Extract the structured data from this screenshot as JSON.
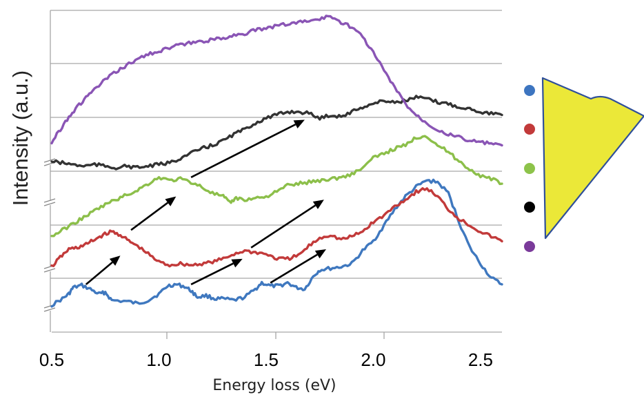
{
  "chart_data": {
    "type": "line",
    "title": "",
    "xlabel": "Energy loss (eV)",
    "ylabel": "Intensity (a.u.)",
    "xlim": [
      0.5,
      2.6
    ],
    "x_ticks": [
      "0.5",
      "1.0",
      "1.5",
      "2.0",
      "2.5"
    ],
    "x_tick_values": [
      0.5,
      1.0,
      1.5,
      2.0,
      2.5
    ],
    "y_ticks_shown": false,
    "grid": "horizontal",
    "y_axis_breaks": true,
    "series": [
      {
        "color": "#3f78bf",
        "points": [
          [
            0.5,
            0.0
          ],
          [
            0.55,
            0.2
          ],
          [
            0.58,
            0.35
          ],
          [
            0.6,
            0.55
          ],
          [
            0.64,
            0.62
          ],
          [
            0.68,
            0.5
          ],
          [
            0.72,
            0.35
          ],
          [
            0.75,
            0.4
          ],
          [
            0.78,
            0.15
          ],
          [
            0.85,
            0.12
          ],
          [
            0.9,
            0.05
          ],
          [
            0.95,
            0.15
          ],
          [
            1.0,
            0.35
          ],
          [
            1.04,
            0.6
          ],
          [
            1.08,
            0.65
          ],
          [
            1.12,
            0.58
          ],
          [
            1.15,
            0.45
          ],
          [
            1.18,
            0.25
          ],
          [
            1.22,
            0.3
          ],
          [
            1.26,
            0.2
          ],
          [
            1.3,
            0.2
          ],
          [
            1.35,
            0.15
          ],
          [
            1.4,
            0.25
          ],
          [
            1.45,
            0.5
          ],
          [
            1.48,
            0.7
          ],
          [
            1.52,
            0.6
          ],
          [
            1.56,
            0.6
          ],
          [
            1.6,
            0.7
          ],
          [
            1.64,
            0.55
          ],
          [
            1.68,
            0.5
          ],
          [
            1.72,
            0.9
          ],
          [
            1.75,
            1.1
          ],
          [
            1.8,
            1.15
          ],
          [
            1.85,
            1.2
          ],
          [
            1.9,
            1.3
          ],
          [
            1.95,
            1.7
          ],
          [
            2.0,
            2.0
          ],
          [
            2.05,
            2.5
          ],
          [
            2.1,
            3.0
          ],
          [
            2.15,
            3.4
          ],
          [
            2.2,
            3.7
          ],
          [
            2.25,
            3.9
          ],
          [
            2.3,
            3.85
          ],
          [
            2.35,
            3.5
          ],
          [
            2.4,
            2.6
          ],
          [
            2.45,
            1.8
          ],
          [
            2.5,
            1.3
          ],
          [
            2.55,
            0.85
          ],
          [
            2.6,
            0.65
          ]
        ]
      },
      {
        "color": "#c23a3a",
        "points": [
          [
            0.5,
            1.2
          ],
          [
            0.54,
            1.5
          ],
          [
            0.58,
            1.75
          ],
          [
            0.62,
            1.8
          ],
          [
            0.66,
            1.9
          ],
          [
            0.7,
            2.05
          ],
          [
            0.74,
            2.2
          ],
          [
            0.78,
            2.3
          ],
          [
            0.82,
            2.2
          ],
          [
            0.86,
            2.0
          ],
          [
            0.9,
            1.85
          ],
          [
            0.95,
            1.6
          ],
          [
            1.0,
            1.35
          ],
          [
            1.05,
            1.25
          ],
          [
            1.1,
            1.3
          ],
          [
            1.15,
            1.25
          ],
          [
            1.2,
            1.3
          ],
          [
            1.25,
            1.35
          ],
          [
            1.3,
            1.45
          ],
          [
            1.35,
            1.6
          ],
          [
            1.4,
            1.7
          ],
          [
            1.45,
            1.65
          ],
          [
            1.5,
            1.6
          ],
          [
            1.55,
            1.45
          ],
          [
            1.6,
            1.45
          ],
          [
            1.65,
            1.55
          ],
          [
            1.7,
            1.85
          ],
          [
            1.75,
            2.1
          ],
          [
            1.8,
            2.2
          ],
          [
            1.85,
            2.05
          ],
          [
            1.9,
            2.15
          ],
          [
            1.95,
            2.3
          ],
          [
            2.0,
            2.6
          ],
          [
            2.05,
            2.8
          ],
          [
            2.1,
            3.1
          ],
          [
            2.15,
            3.3
          ],
          [
            2.2,
            3.55
          ],
          [
            2.25,
            3.65
          ],
          [
            2.3,
            3.4
          ],
          [
            2.35,
            3.0
          ],
          [
            2.4,
            2.7
          ],
          [
            2.45,
            2.5
          ],
          [
            2.5,
            2.3
          ],
          [
            2.55,
            2.15
          ],
          [
            2.6,
            2.0
          ]
        ]
      },
      {
        "color": "#8cbf4a",
        "points": [
          [
            0.5,
            2.15
          ],
          [
            0.55,
            2.35
          ],
          [
            0.6,
            2.55
          ],
          [
            0.65,
            2.75
          ],
          [
            0.7,
            2.95
          ],
          [
            0.75,
            3.15
          ],
          [
            0.8,
            3.3
          ],
          [
            0.85,
            3.45
          ],
          [
            0.9,
            3.6
          ],
          [
            0.95,
            3.8
          ],
          [
            1.0,
            4.0
          ],
          [
            1.05,
            3.9
          ],
          [
            1.1,
            3.95
          ],
          [
            1.15,
            3.85
          ],
          [
            1.2,
            3.7
          ],
          [
            1.25,
            3.5
          ],
          [
            1.3,
            3.4
          ],
          [
            1.33,
            3.2
          ],
          [
            1.36,
            3.35
          ],
          [
            1.4,
            3.3
          ],
          [
            1.45,
            3.35
          ],
          [
            1.5,
            3.4
          ],
          [
            1.55,
            3.55
          ],
          [
            1.6,
            3.75
          ],
          [
            1.65,
            3.8
          ],
          [
            1.7,
            3.85
          ],
          [
            1.75,
            3.9
          ],
          [
            1.8,
            3.95
          ],
          [
            1.85,
            4.0
          ],
          [
            1.9,
            4.1
          ],
          [
            1.95,
            4.3
          ],
          [
            2.0,
            4.6
          ],
          [
            2.05,
            4.75
          ],
          [
            2.1,
            4.9
          ],
          [
            2.15,
            5.0
          ],
          [
            2.2,
            5.25
          ],
          [
            2.25,
            5.3
          ],
          [
            2.3,
            5.0
          ],
          [
            2.35,
            4.8
          ],
          [
            2.4,
            4.5
          ],
          [
            2.45,
            4.25
          ],
          [
            2.5,
            4.05
          ],
          [
            2.55,
            3.95
          ],
          [
            2.6,
            3.8
          ]
        ]
      },
      {
        "color": "#333333",
        "points": [
          [
            0.5,
            4.5
          ],
          [
            0.55,
            4.45
          ],
          [
            0.6,
            4.4
          ],
          [
            0.65,
            4.35
          ],
          [
            0.7,
            4.4
          ],
          [
            0.75,
            4.35
          ],
          [
            0.8,
            4.3
          ],
          [
            0.85,
            4.35
          ],
          [
            0.9,
            4.3
          ],
          [
            0.95,
            4.35
          ],
          [
            1.0,
            4.4
          ],
          [
            1.05,
            4.45
          ],
          [
            1.1,
            4.6
          ],
          [
            1.15,
            4.75
          ],
          [
            1.2,
            4.9
          ],
          [
            1.25,
            5.0
          ],
          [
            1.3,
            5.15
          ],
          [
            1.35,
            5.35
          ],
          [
            1.4,
            5.5
          ],
          [
            1.45,
            5.7
          ],
          [
            1.5,
            5.85
          ],
          [
            1.55,
            5.95
          ],
          [
            1.6,
            6.05
          ],
          [
            1.65,
            6.05
          ],
          [
            1.7,
            6.0
          ],
          [
            1.75,
            5.85
          ],
          [
            1.8,
            5.95
          ],
          [
            1.85,
            5.9
          ],
          [
            1.9,
            6.05
          ],
          [
            1.95,
            6.2
          ],
          [
            2.0,
            6.3
          ],
          [
            2.05,
            6.4
          ],
          [
            2.1,
            6.35
          ],
          [
            2.15,
            6.4
          ],
          [
            2.2,
            6.5
          ],
          [
            2.25,
            6.45
          ],
          [
            2.3,
            6.35
          ],
          [
            2.35,
            6.3
          ],
          [
            2.4,
            6.2
          ],
          [
            2.45,
            6.15
          ],
          [
            2.5,
            6.05
          ],
          [
            2.55,
            6.0
          ],
          [
            2.6,
            5.95
          ]
        ]
      },
      {
        "color": "#8a55b5",
        "points": [
          [
            0.5,
            5.1
          ],
          [
            0.54,
            5.5
          ],
          [
            0.58,
            5.9
          ],
          [
            0.62,
            6.2
          ],
          [
            0.66,
            6.5
          ],
          [
            0.7,
            6.75
          ],
          [
            0.75,
            7.05
          ],
          [
            0.8,
            7.3
          ],
          [
            0.85,
            7.5
          ],
          [
            0.9,
            7.7
          ],
          [
            0.95,
            7.85
          ],
          [
            1.0,
            7.95
          ],
          [
            1.05,
            8.05
          ],
          [
            1.1,
            8.15
          ],
          [
            1.15,
            8.2
          ],
          [
            1.2,
            8.25
          ],
          [
            1.25,
            8.3
          ],
          [
            1.3,
            8.35
          ],
          [
            1.35,
            8.45
          ],
          [
            1.4,
            8.5
          ],
          [
            1.45,
            8.6
          ],
          [
            1.5,
            8.65
          ],
          [
            1.55,
            8.75
          ],
          [
            1.6,
            8.8
          ],
          [
            1.65,
            8.85
          ],
          [
            1.7,
            8.9
          ],
          [
            1.75,
            8.95
          ],
          [
            1.8,
            9.05
          ],
          [
            1.85,
            8.85
          ],
          [
            1.9,
            8.7
          ],
          [
            1.95,
            8.4
          ],
          [
            2.0,
            7.9
          ],
          [
            2.05,
            7.35
          ],
          [
            2.1,
            6.8
          ],
          [
            2.15,
            6.3
          ],
          [
            2.2,
            5.95
          ],
          [
            2.25,
            5.7
          ],
          [
            2.3,
            5.5
          ],
          [
            2.35,
            5.35
          ],
          [
            2.4,
            5.25
          ],
          [
            2.45,
            5.15
          ],
          [
            2.5,
            5.1
          ],
          [
            2.55,
            5.05
          ],
          [
            2.6,
            5.0
          ]
        ]
      }
    ],
    "arrows": [
      {
        "from": [
          0.66,
          0.65
        ],
        "to": [
          0.82,
          1.55
        ]
      },
      {
        "from": [
          0.87,
          2.35
        ],
        "to": [
          1.08,
          3.4
        ]
      },
      {
        "from": [
          1.15,
          4.0
        ],
        "to": [
          1.68,
          5.8
        ]
      },
      {
        "from": [
          1.15,
          0.65
        ],
        "to": [
          1.39,
          1.45
        ]
      },
      {
        "from": [
          1.43,
          1.8
        ],
        "to": [
          1.77,
          3.3
        ]
      },
      {
        "from": [
          1.52,
          0.7
        ],
        "to": [
          1.78,
          1.75
        ]
      }
    ],
    "legend": {
      "placement": "right",
      "markers": [
        {
          "color": "#3d75c0"
        },
        {
          "color": "#c23a3a"
        },
        {
          "color": "#8dc34a"
        },
        {
          "color": "#000000"
        },
        {
          "color": "#7a3a9a"
        }
      ],
      "shape_fill": "#ebe838",
      "shape_stroke": "#2f4f9a"
    }
  }
}
